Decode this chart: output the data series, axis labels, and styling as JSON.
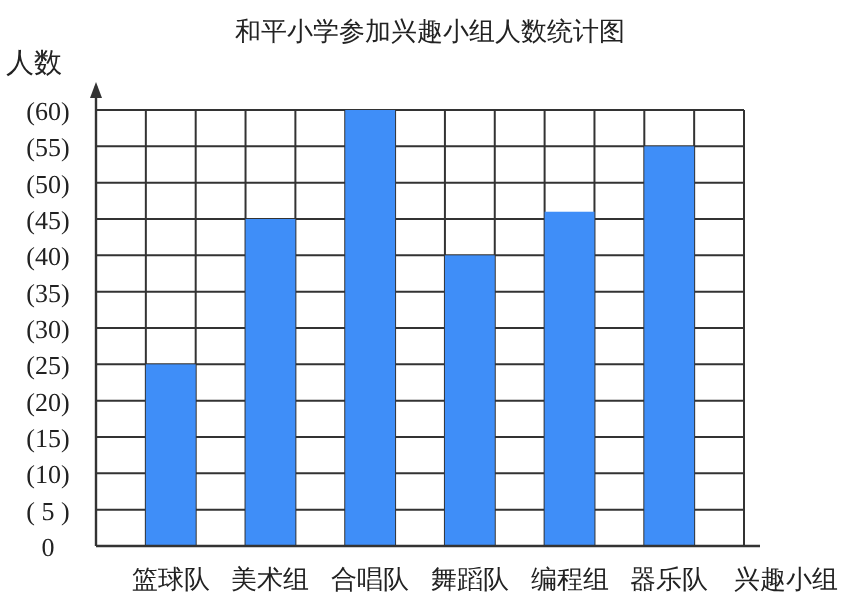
{
  "chart_data": {
    "type": "bar",
    "title": "和平小学参加兴趣小组人数统计图",
    "xlabel": "兴趣小组",
    "ylabel": "人数",
    "categories": [
      "篮球队",
      "美术组",
      "合唱队",
      "舞蹈队",
      "编程组",
      "器乐队"
    ],
    "values": [
      25,
      45,
      60,
      40,
      46,
      55
    ],
    "color": "#3f8ef8",
    "ylim": [
      0,
      60
    ],
    "yticks": [
      0,
      {
        "value": 5,
        "label": "( 5 )"
      },
      {
        "value": 10,
        "label": "(10)"
      },
      {
        "value": 15,
        "label": "(15)"
      },
      {
        "value": 20,
        "label": "(20)"
      },
      {
        "value": 25,
        "label": "(25)"
      },
      {
        "value": 30,
        "label": "(30)"
      },
      {
        "value": 35,
        "label": "(35)"
      },
      {
        "value": 40,
        "label": "(40)"
      },
      {
        "value": 45,
        "label": "(45)"
      },
      {
        "value": 50,
        "label": "(50)"
      },
      {
        "value": 55,
        "label": "(55)"
      },
      {
        "value": 60,
        "label": "(60)"
      }
    ],
    "grid": true
  }
}
